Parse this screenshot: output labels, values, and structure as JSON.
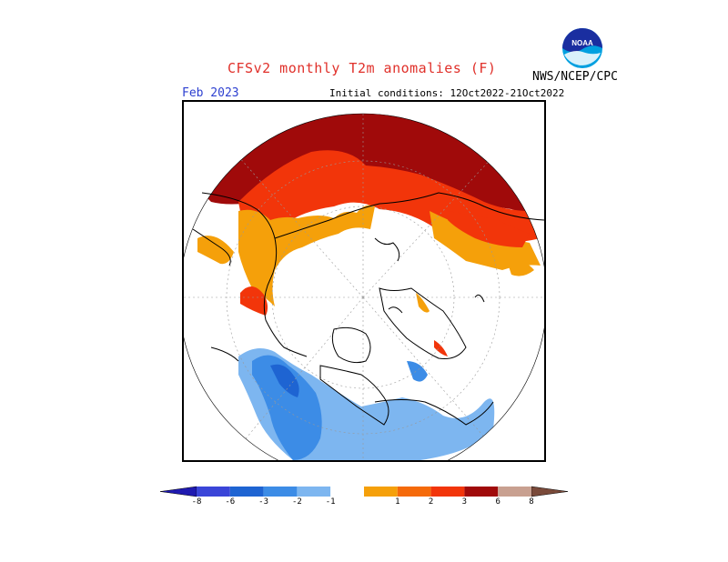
{
  "header": {
    "title": "CFSv2 monthly T2m anomalies (F)",
    "agency": "NWS/NCEP/CPC",
    "month": "Feb 2023",
    "initial_conditions": "Initial conditions: 12Oct2022-21Oct2022",
    "logo_text": "NOAA"
  },
  "legend": {
    "bins": [
      {
        "color": "#1f1ab0",
        "label": "-8"
      },
      {
        "color": "#3a45d8",
        "label": "-6"
      },
      {
        "color": "#1e64d2",
        "label": "-3"
      },
      {
        "color": "#3c8ce6",
        "label": "-2"
      },
      {
        "color": "#7db6f0",
        "label": "-1"
      },
      {
        "color": "#ffffff",
        "label": ""
      },
      {
        "color": "#f5a00a",
        "label": "1"
      },
      {
        "color": "#f56a0a",
        "label": "2"
      },
      {
        "color": "#f2350a",
        "label": "3"
      },
      {
        "color": "#a00a0a",
        "label": "6"
      },
      {
        "color": "#c8a090",
        "label": "8"
      },
      {
        "color": "#7a4a3a",
        "label": ""
      }
    ]
  },
  "colors": {
    "warm_extreme": "#a00a0a",
    "warm_high": "#f2350a",
    "warm_mid": "#f5a00a",
    "cool_light": "#7db6f0",
    "cool_mid": "#3c8ce6",
    "cool_dark": "#1e64d2"
  }
}
